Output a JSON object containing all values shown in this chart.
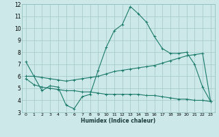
{
  "title": "",
  "xlabel": "Humidex (Indice chaleur)",
  "ylabel": "",
  "bg_color": "#cce8e8",
  "grid_color": "#aacccc",
  "line_color": "#1a7a6a",
  "line1_x": [
    0,
    1,
    2,
    3,
    4,
    5,
    6,
    7,
    8,
    9,
    10,
    11,
    12,
    13,
    14,
    15,
    16,
    17,
    18,
    19,
    20,
    21,
    22,
    23
  ],
  "line1_y": [
    7.2,
    6.0,
    4.8,
    5.2,
    5.1,
    3.6,
    3.3,
    4.3,
    4.5,
    6.5,
    8.4,
    9.8,
    10.3,
    11.8,
    11.2,
    10.5,
    9.3,
    8.3,
    7.9,
    7.9,
    8.0,
    7.0,
    5.1,
    3.9
  ],
  "line2_x": [
    0,
    1,
    2,
    3,
    4,
    5,
    6,
    7,
    8,
    9,
    10,
    11,
    12,
    13,
    14,
    15,
    16,
    17,
    18,
    19,
    20,
    21,
    22,
    23
  ],
  "line2_y": [
    6.0,
    6.0,
    5.9,
    5.8,
    5.7,
    5.6,
    5.7,
    5.8,
    5.9,
    6.0,
    6.2,
    6.4,
    6.5,
    6.6,
    6.7,
    6.8,
    6.9,
    7.1,
    7.3,
    7.5,
    7.7,
    7.8,
    7.9,
    3.9
  ],
  "line3_x": [
    0,
    1,
    2,
    3,
    4,
    5,
    6,
    7,
    8,
    9,
    10,
    11,
    12,
    13,
    14,
    15,
    16,
    17,
    18,
    19,
    20,
    21,
    22,
    23
  ],
  "line3_y": [
    5.8,
    5.3,
    5.1,
    5.0,
    4.9,
    4.8,
    4.8,
    4.7,
    4.7,
    4.6,
    4.5,
    4.5,
    4.5,
    4.5,
    4.5,
    4.4,
    4.4,
    4.3,
    4.2,
    4.1,
    4.1,
    4.0,
    4.0,
    3.9
  ],
  "xlim": [
    -0.5,
    23.5
  ],
  "ylim": [
    3,
    12
  ],
  "xticks": [
    0,
    1,
    2,
    3,
    4,
    5,
    6,
    7,
    8,
    9,
    10,
    11,
    12,
    13,
    14,
    15,
    16,
    17,
    18,
    19,
    20,
    21,
    22,
    23
  ],
  "yticks": [
    3,
    4,
    5,
    6,
    7,
    8,
    9,
    10,
    11,
    12
  ]
}
